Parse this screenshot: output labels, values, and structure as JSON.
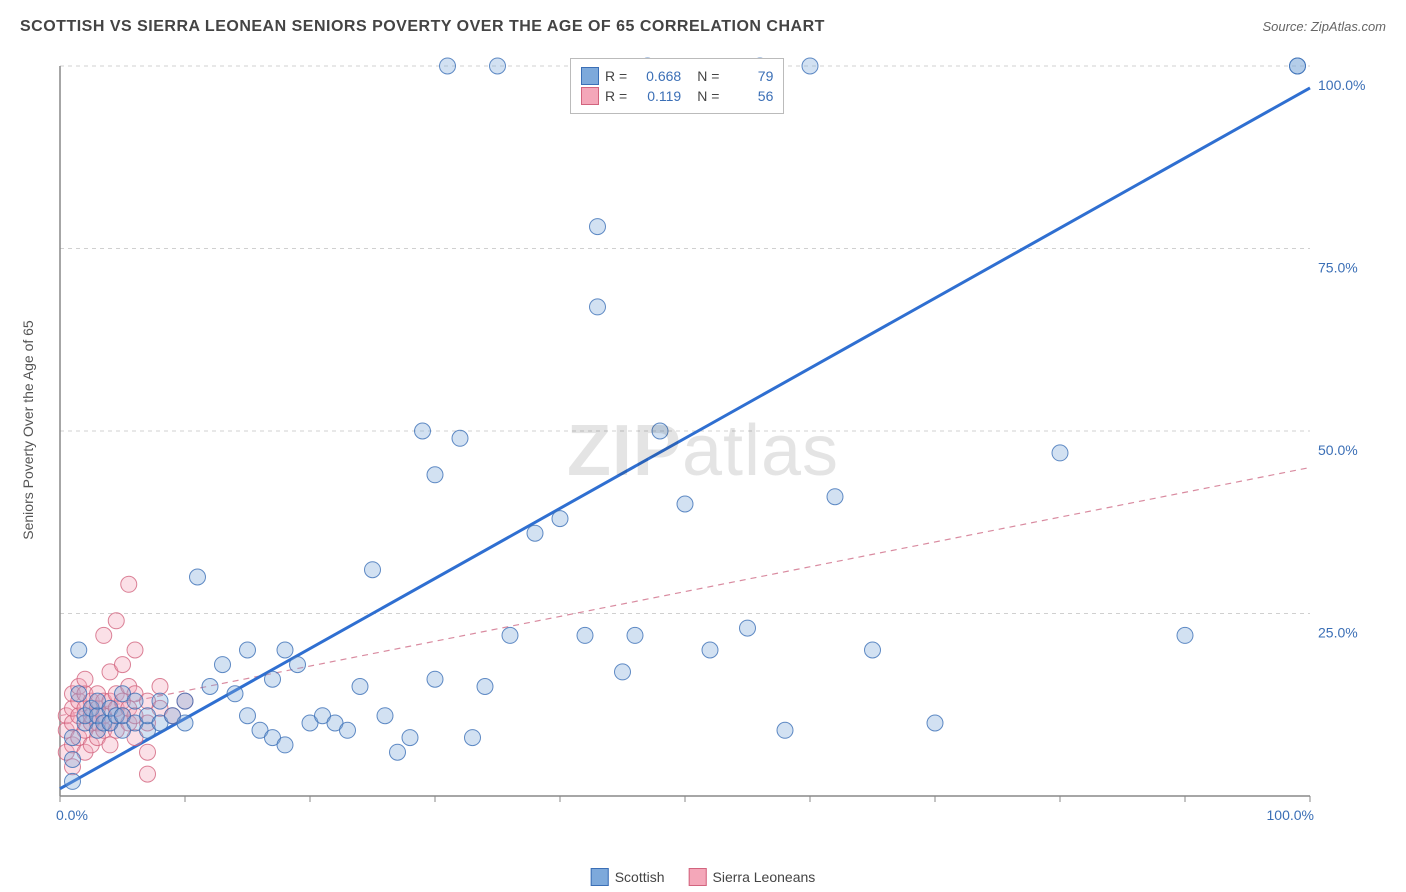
{
  "title": "SCOTTISH VS SIERRA LEONEAN SENIORS POVERTY OVER THE AGE OF 65 CORRELATION CHART",
  "source_label": "Source: ZipAtlas.com",
  "y_axis_label": "Seniors Poverty Over the Age of 65",
  "watermark": {
    "bold": "ZIP",
    "rest": "atlas"
  },
  "chart": {
    "type": "scatter",
    "xlim": [
      0,
      100
    ],
    "ylim": [
      0,
      100
    ],
    "x_ticks": [
      0,
      10,
      20,
      30,
      40,
      50,
      60,
      70,
      80,
      90,
      100
    ],
    "y_grid": [
      25,
      50,
      75,
      100
    ],
    "x_tick_labels": {
      "0": "0.0%",
      "100": "100.0%"
    },
    "y_tick_labels": {
      "25": "25.0%",
      "50": "50.0%",
      "75": "75.0%",
      "100": "100.0%"
    },
    "background_color": "#ffffff",
    "grid_color": "#d0d0d0",
    "axis_color": "#888888",
    "series": {
      "scottish": {
        "label": "Scottish",
        "fill": "#7da9db",
        "stroke": "#3b6fb6",
        "marker_radius": 8,
        "regression": {
          "slope": 0.96,
          "intercept": 1,
          "style": "solid",
          "color": "#2f6fd1",
          "width": 3
        },
        "R": 0.668,
        "N": 79,
        "points": [
          [
            1,
            2
          ],
          [
            1,
            5
          ],
          [
            1,
            8
          ],
          [
            1.5,
            14
          ],
          [
            1.5,
            20
          ],
          [
            2,
            10
          ],
          [
            2,
            11
          ],
          [
            2.5,
            12
          ],
          [
            3,
            9
          ],
          [
            3,
            11
          ],
          [
            3,
            13
          ],
          [
            3.5,
            10
          ],
          [
            4,
            10
          ],
          [
            4,
            12
          ],
          [
            4.5,
            11
          ],
          [
            5,
            9
          ],
          [
            5,
            11
          ],
          [
            5,
            14
          ],
          [
            6,
            10
          ],
          [
            6,
            13
          ],
          [
            7,
            9
          ],
          [
            7,
            11
          ],
          [
            8,
            10
          ],
          [
            8,
            13
          ],
          [
            9,
            11
          ],
          [
            10,
            10
          ],
          [
            10,
            13
          ],
          [
            11,
            30
          ],
          [
            12,
            15
          ],
          [
            13,
            18
          ],
          [
            14,
            14
          ],
          [
            15,
            20
          ],
          [
            15,
            11
          ],
          [
            16,
            9
          ],
          [
            17,
            8
          ],
          [
            17,
            16
          ],
          [
            18,
            20
          ],
          [
            18,
            7
          ],
          [
            19,
            18
          ],
          [
            20,
            10
          ],
          [
            21,
            11
          ],
          [
            22,
            10
          ],
          [
            23,
            9
          ],
          [
            24,
            15
          ],
          [
            25,
            31
          ],
          [
            26,
            11
          ],
          [
            27,
            6
          ],
          [
            28,
            8
          ],
          [
            29,
            50
          ],
          [
            30,
            16
          ],
          [
            30,
            44
          ],
          [
            31,
            100
          ],
          [
            32,
            49
          ],
          [
            33,
            8
          ],
          [
            34,
            15
          ],
          [
            35,
            100
          ],
          [
            36,
            22
          ],
          [
            38,
            36
          ],
          [
            40,
            38
          ],
          [
            42,
            22
          ],
          [
            43,
            78
          ],
          [
            43,
            67
          ],
          [
            45,
            17
          ],
          [
            46,
            22
          ],
          [
            47,
            100
          ],
          [
            48,
            50
          ],
          [
            50,
            40
          ],
          [
            52,
            20
          ],
          [
            55,
            23
          ],
          [
            56,
            100
          ],
          [
            58,
            9
          ],
          [
            60,
            100
          ],
          [
            62,
            41
          ],
          [
            65,
            20
          ],
          [
            70,
            10
          ],
          [
            80,
            47
          ],
          [
            90,
            22
          ],
          [
            99,
            100
          ],
          [
            99,
            100
          ]
        ]
      },
      "sierra_leoneans": {
        "label": "Sierra Leoneans",
        "fill": "#f4a7b9",
        "stroke": "#d2647e",
        "marker_radius": 8,
        "regression": {
          "slope": 0.34,
          "intercept": 11,
          "style": "dashed",
          "color": "#d98ba0",
          "width": 1.2
        },
        "R": 0.119,
        "N": 56,
        "points": [
          [
            0.5,
            6
          ],
          [
            0.5,
            9
          ],
          [
            0.5,
            11
          ],
          [
            1,
            4
          ],
          [
            1,
            7
          ],
          [
            1,
            10
          ],
          [
            1,
            12
          ],
          [
            1,
            14
          ],
          [
            1.5,
            8
          ],
          [
            1.5,
            11
          ],
          [
            1.5,
            13
          ],
          [
            1.5,
            15
          ],
          [
            2,
            6
          ],
          [
            2,
            9
          ],
          [
            2,
            12
          ],
          [
            2,
            14
          ],
          [
            2,
            16
          ],
          [
            2.5,
            7
          ],
          [
            2.5,
            10
          ],
          [
            2.5,
            11
          ],
          [
            2.5,
            13
          ],
          [
            3,
            8
          ],
          [
            3,
            10
          ],
          [
            3,
            12
          ],
          [
            3,
            14
          ],
          [
            3.5,
            9
          ],
          [
            3.5,
            11
          ],
          [
            3.5,
            13
          ],
          [
            3.5,
            22
          ],
          [
            4,
            7
          ],
          [
            4,
            10
          ],
          [
            4,
            13
          ],
          [
            4,
            17
          ],
          [
            4.5,
            9
          ],
          [
            4.5,
            12
          ],
          [
            4.5,
            14
          ],
          [
            4.5,
            24
          ],
          [
            5,
            11
          ],
          [
            5,
            13
          ],
          [
            5,
            18
          ],
          [
            5.5,
            10
          ],
          [
            5.5,
            12
          ],
          [
            5.5,
            15
          ],
          [
            5.5,
            29
          ],
          [
            6,
            8
          ],
          [
            6,
            11
          ],
          [
            6,
            14
          ],
          [
            6,
            20
          ],
          [
            7,
            6
          ],
          [
            7,
            10
          ],
          [
            7,
            13
          ],
          [
            7,
            3
          ],
          [
            8,
            12
          ],
          [
            8,
            15
          ],
          [
            9,
            11
          ],
          [
            10,
            13
          ]
        ]
      }
    },
    "legend_stats": [
      {
        "series": "scottish",
        "R": "0.668",
        "N": "79"
      },
      {
        "series": "sierra_leoneans",
        "R": "0.119",
        "N": "56"
      }
    ]
  },
  "legend_bottom": [
    {
      "series": "scottish",
      "label": "Scottish"
    },
    {
      "series": "sierra_leoneans",
      "label": "Sierra Leoneans"
    }
  ]
}
